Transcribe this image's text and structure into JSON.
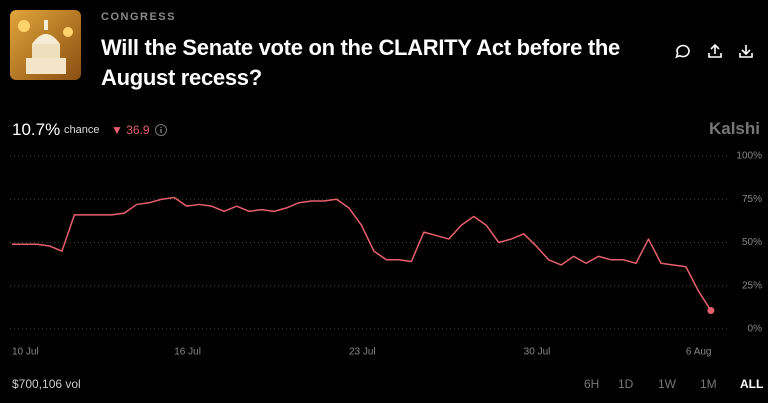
{
  "header": {
    "category": "CONGRESS",
    "title": "Will the Senate vote on the CLARITY Act before the August recess?"
  },
  "stats": {
    "chance_value": "10.7%",
    "chance_label": "chance",
    "change_symbol": "▼",
    "change": "36.9",
    "brand": "Kalshi",
    "volume": "$700,106 vol"
  },
  "ranges": [
    "6H",
    "1D",
    "1W",
    "1M",
    "ALL"
  ],
  "chart_data": {
    "type": "line",
    "color": "#e8606b",
    "grid": true,
    "categories": [
      "10 Jul",
      null,
      null,
      null,
      null,
      null,
      null,
      null,
      null,
      null,
      null,
      null,
      null,
      "16 Jul",
      null,
      null,
      null,
      null,
      null,
      null,
      null,
      null,
      null,
      null,
      null,
      null,
      null,
      "23 Jul",
      null,
      null,
      null,
      null,
      null,
      null,
      null,
      null,
      null,
      null,
      null,
      null,
      null,
      "30 Jul",
      null,
      null,
      null,
      null,
      null,
      null,
      null,
      null,
      null,
      null,
      null,
      null,
      "6 Aug",
      null,
      null
    ],
    "values": [
      49,
      49,
      49,
      48,
      45,
      66,
      66,
      66,
      66,
      67,
      72,
      73,
      75,
      76,
      71,
      72,
      71,
      68,
      71,
      68,
      69,
      68,
      70,
      73,
      74,
      74,
      75,
      70,
      60,
      45,
      40,
      40,
      39,
      56,
      54,
      52,
      60,
      65,
      60,
      50,
      52,
      55,
      48,
      40,
      37,
      42,
      38,
      42,
      40,
      40,
      38,
      52,
      38,
      37,
      36,
      22,
      10.7
    ],
    "ylim": [
      0,
      100
    ],
    "yticks": [
      {
        "value": 0,
        "label": "0%"
      },
      {
        "value": 25,
        "label": "25%"
      },
      {
        "value": 50,
        "label": "50%"
      },
      {
        "value": 75,
        "label": "75%"
      },
      {
        "value": 100,
        "label": "100%"
      }
    ]
  }
}
